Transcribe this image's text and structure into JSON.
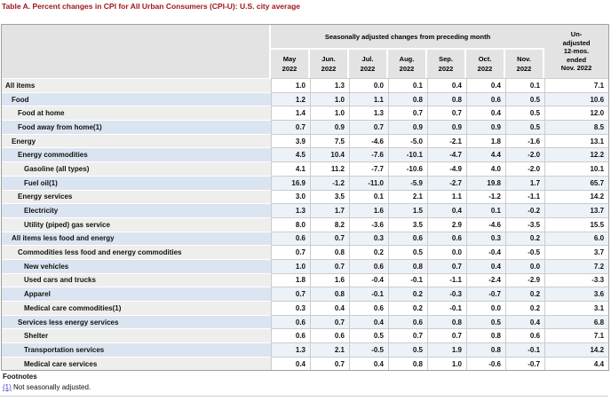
{
  "title": "Table A. Percent changes in CPI for All Urban Consumers (CPI-U): U.S. city average",
  "colors": {
    "title_red": "#9e1418",
    "header_gray": "#e3e3e3",
    "row_stub_gray": "#eeeeec",
    "row_stub_blue": "#dbe5f1",
    "row_cell_blue": "#edf2f9",
    "footnote_link_blue": "#3b3bc4"
  },
  "table": {
    "header": {
      "group_label": "Seasonally adjusted changes from preceding month",
      "months": [
        {
          "label": "May",
          "year": "2022"
        },
        {
          "label": "Jun.",
          "year": "2022"
        },
        {
          "label": "Jul.",
          "year": "2022"
        },
        {
          "label": "Aug.",
          "year": "2022"
        },
        {
          "label": "Sep.",
          "year": "2022"
        },
        {
          "label": "Oct.",
          "year": "2022"
        },
        {
          "label": "Nov.",
          "year": "2022"
        }
      ],
      "unadjusted_label": "Un-\nadjusted\n12-mos.\nended\nNov. 2022"
    },
    "rows": [
      {
        "label": "All items",
        "indent": 0,
        "values": [
          "1.0",
          "1.3",
          "0.0",
          "0.1",
          "0.4",
          "0.4",
          "0.1",
          "7.1"
        ]
      },
      {
        "label": "Food",
        "indent": 1,
        "values": [
          "1.2",
          "1.0",
          "1.1",
          "0.8",
          "0.8",
          "0.6",
          "0.5",
          "10.6"
        ]
      },
      {
        "label": "Food at home",
        "indent": 2,
        "values": [
          "1.4",
          "1.0",
          "1.3",
          "0.7",
          "0.7",
          "0.4",
          "0.5",
          "12.0"
        ]
      },
      {
        "label": "Food away from home(1)",
        "indent": 2,
        "values": [
          "0.7",
          "0.9",
          "0.7",
          "0.9",
          "0.9",
          "0.9",
          "0.5",
          "8.5"
        ]
      },
      {
        "label": "Energy",
        "indent": 1,
        "values": [
          "3.9",
          "7.5",
          "-4.6",
          "-5.0",
          "-2.1",
          "1.8",
          "-1.6",
          "13.1"
        ]
      },
      {
        "label": "Energy commodities",
        "indent": 2,
        "values": [
          "4.5",
          "10.4",
          "-7.6",
          "-10.1",
          "-4.7",
          "4.4",
          "-2.0",
          "12.2"
        ]
      },
      {
        "label": "Gasoline (all types)",
        "indent": 3,
        "values": [
          "4.1",
          "11.2",
          "-7.7",
          "-10.6",
          "-4.9",
          "4.0",
          "-2.0",
          "10.1"
        ]
      },
      {
        "label": "Fuel oil(1)",
        "indent": 3,
        "values": [
          "16.9",
          "-1.2",
          "-11.0",
          "-5.9",
          "-2.7",
          "19.8",
          "1.7",
          "65.7"
        ]
      },
      {
        "label": "Energy services",
        "indent": 2,
        "values": [
          "3.0",
          "3.5",
          "0.1",
          "2.1",
          "1.1",
          "-1.2",
          "-1.1",
          "14.2"
        ]
      },
      {
        "label": "Electricity",
        "indent": 3,
        "values": [
          "1.3",
          "1.7",
          "1.6",
          "1.5",
          "0.4",
          "0.1",
          "-0.2",
          "13.7"
        ]
      },
      {
        "label": "Utility (piped) gas service",
        "indent": 3,
        "values": [
          "8.0",
          "8.2",
          "-3.6",
          "3.5",
          "2.9",
          "-4.6",
          "-3.5",
          "15.5"
        ]
      },
      {
        "label": "All items less food and energy",
        "indent": 1,
        "values": [
          "0.6",
          "0.7",
          "0.3",
          "0.6",
          "0.6",
          "0.3",
          "0.2",
          "6.0"
        ]
      },
      {
        "label": "Commodities less food and energy commodities",
        "indent": 2,
        "values": [
          "0.7",
          "0.8",
          "0.2",
          "0.5",
          "0.0",
          "-0.4",
          "-0.5",
          "3.7"
        ]
      },
      {
        "label": "New vehicles",
        "indent": 3,
        "values": [
          "1.0",
          "0.7",
          "0.6",
          "0.8",
          "0.7",
          "0.4",
          "0.0",
          "7.2"
        ]
      },
      {
        "label": "Used cars and trucks",
        "indent": 3,
        "values": [
          "1.8",
          "1.6",
          "-0.4",
          "-0.1",
          "-1.1",
          "-2.4",
          "-2.9",
          "-3.3"
        ]
      },
      {
        "label": "Apparel",
        "indent": 3,
        "values": [
          "0.7",
          "0.8",
          "-0.1",
          "0.2",
          "-0.3",
          "-0.7",
          "0.2",
          "3.6"
        ]
      },
      {
        "label": "Medical care commodities(1)",
        "indent": 3,
        "values": [
          "0.3",
          "0.4",
          "0.6",
          "0.2",
          "-0.1",
          "0.0",
          "0.2",
          "3.1"
        ]
      },
      {
        "label": "Services less energy services",
        "indent": 2,
        "values": [
          "0.6",
          "0.7",
          "0.4",
          "0.6",
          "0.8",
          "0.5",
          "0.4",
          "6.8"
        ]
      },
      {
        "label": "Shelter",
        "indent": 3,
        "values": [
          "0.6",
          "0.6",
          "0.5",
          "0.7",
          "0.7",
          "0.8",
          "0.6",
          "7.1"
        ]
      },
      {
        "label": "Transportation services",
        "indent": 3,
        "values": [
          "1.3",
          "2.1",
          "-0.5",
          "0.5",
          "1.9",
          "0.8",
          "-0.1",
          "14.2"
        ]
      },
      {
        "label": "Medical care services",
        "indent": 3,
        "values": [
          "0.4",
          "0.7",
          "0.4",
          "0.8",
          "1.0",
          "-0.6",
          "-0.7",
          "4.4"
        ]
      }
    ]
  },
  "footnotes": {
    "heading": "Footnotes",
    "items": [
      {
        "marker": "(1)",
        "text": " Not seasonally adjusted."
      }
    ]
  }
}
